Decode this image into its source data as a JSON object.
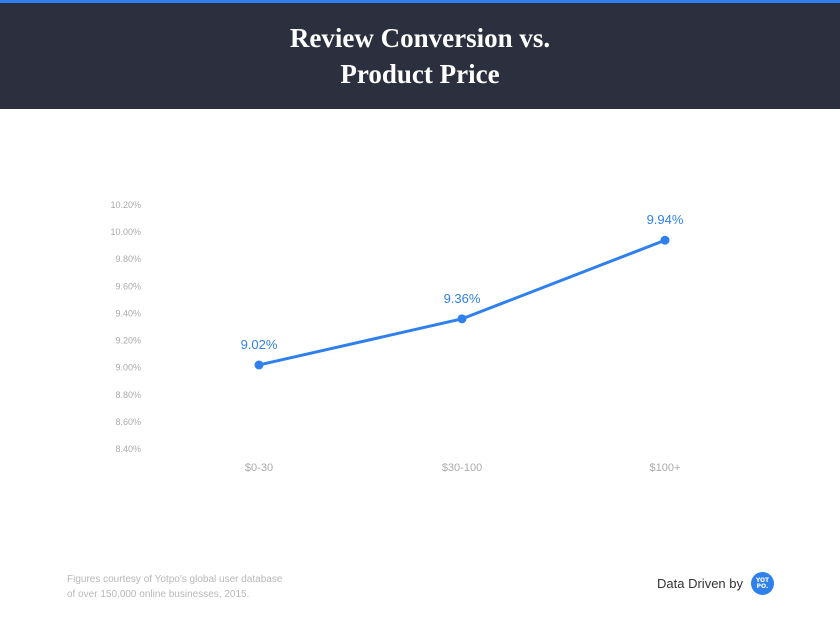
{
  "header": {
    "title": "Review Conversion vs. Product Price"
  },
  "chart_data": {
    "type": "line",
    "title": "Review Conversion vs. Product Price",
    "categories": [
      "$0-30",
      "$30-100",
      "$100+"
    ],
    "values": [
      9.02,
      9.36,
      9.94
    ],
    "data_labels": [
      "9.02%",
      "9.36%",
      "9.94%"
    ],
    "y_ticks": [
      "8.40%",
      "8.60%",
      "8.80%",
      "9.00%",
      "9.20%",
      "9.40%",
      "9.60%",
      "9.80%",
      "10.00%",
      "10.20%"
    ],
    "ylim": [
      8.4,
      10.2
    ],
    "grid": false,
    "color": "#2f80ed"
  },
  "footer": {
    "note_line1": "Figures courtesy of Yotpo's global user database",
    "note_line2": "of over 150,000 online businesses, 2015.",
    "credit": "Data Driven by",
    "logo_text": "YOTPO."
  }
}
